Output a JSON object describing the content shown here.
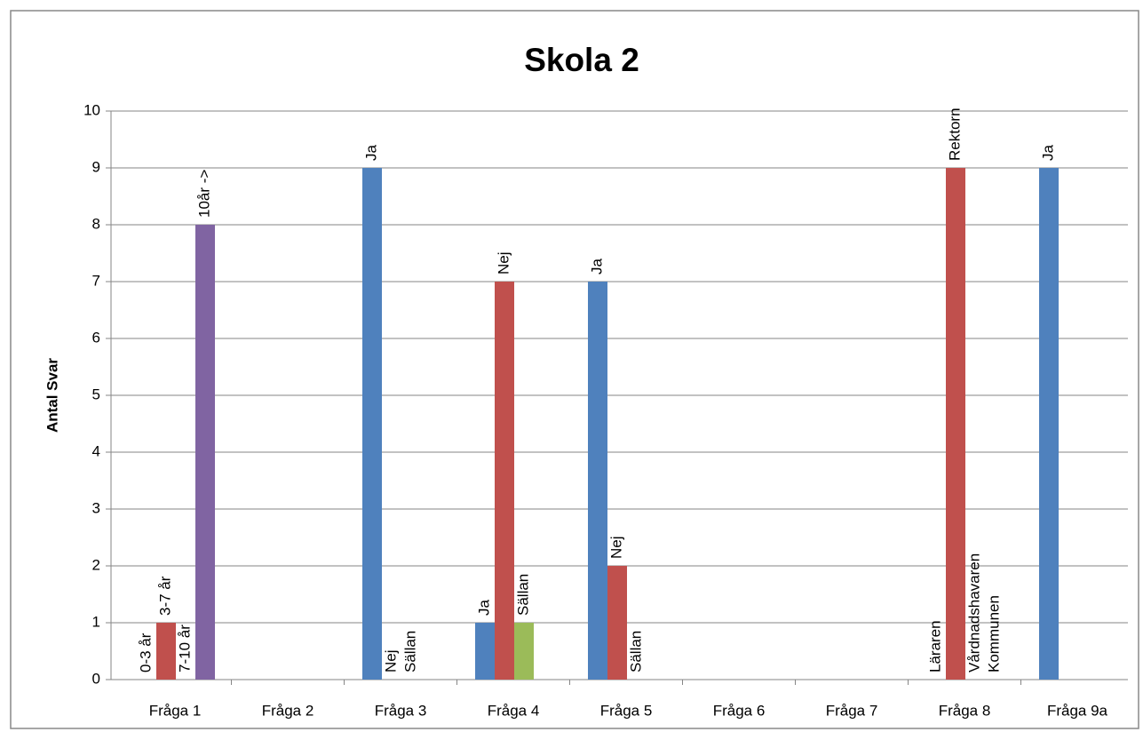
{
  "chart_data": {
    "type": "bar",
    "title": "Skola 2",
    "y_label": "Antal Svar",
    "categories": [
      "Fråga 1",
      "Fråga 2",
      "Fråga 3",
      "Fråga 4",
      "Fråga 5",
      "Fråga 6",
      "Fråga 7",
      "Fråga 8",
      "Fråga 9a"
    ],
    "series": [
      {
        "color": "#4f81bd",
        "values": [
          0,
          null,
          9,
          1,
          7,
          null,
          null,
          0,
          9
        ],
        "labels": [
          "0-3 år",
          null,
          "Ja",
          "Ja",
          "Ja",
          null,
          null,
          "Läraren",
          "Ja"
        ]
      },
      {
        "color": "#c0504d",
        "values": [
          1,
          null,
          0,
          7,
          2,
          null,
          null,
          9,
          null
        ],
        "labels": [
          "3-7 år",
          null,
          "Nej",
          "Nej",
          "Nej",
          null,
          null,
          "Rektorn",
          null
        ]
      },
      {
        "color": "#9bbb59",
        "values": [
          0,
          null,
          0,
          1,
          0,
          null,
          null,
          0,
          null
        ],
        "labels": [
          "7-10 år",
          null,
          "Sällan",
          "Sällan",
          "Sällan",
          null,
          null,
          "Vårdnadshavaren",
          null
        ]
      },
      {
        "color": "#8064a2",
        "values": [
          8,
          null,
          null,
          null,
          null,
          null,
          null,
          0,
          null
        ],
        "labels": [
          "10år ->",
          null,
          null,
          null,
          null,
          null,
          null,
          "Kommunen",
          null
        ]
      }
    ],
    "ylim": [
      0,
      10
    ],
    "yticks": [
      0,
      1,
      2,
      3,
      4,
      5,
      6,
      7,
      8,
      9,
      10
    ],
    "grid": true
  }
}
